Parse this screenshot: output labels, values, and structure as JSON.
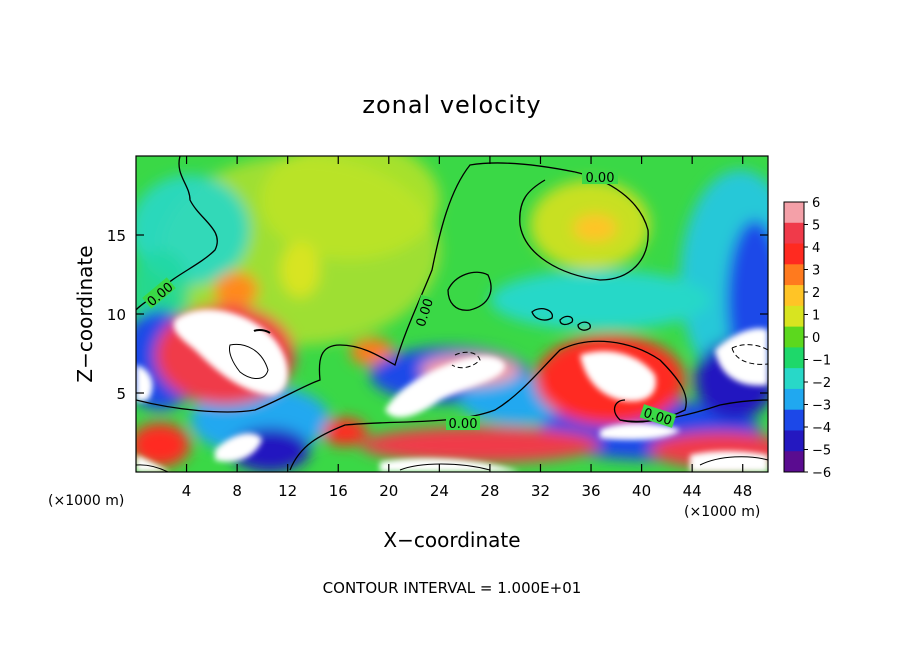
{
  "chart_data": {
    "type": "heatmap",
    "title": "zonal velocity",
    "xlabel": "X−coordinate",
    "ylabel": "Z−coordinate",
    "x_unit_left": "(×1000 m)",
    "x_unit_right": "(×1000 m)",
    "footer": "CONTOUR INTERVAL = 1.000E+01",
    "xlim": [
      0,
      50
    ],
    "ylim": [
      0,
      20
    ],
    "x_ticks": [
      4,
      8,
      12,
      16,
      20,
      24,
      28,
      32,
      36,
      40,
      44,
      48
    ],
    "y_ticks": [
      5,
      10,
      15
    ],
    "colorbar": {
      "ticks": [
        6,
        5,
        4,
        3,
        2,
        1,
        0,
        -1,
        -2,
        -3,
        -4,
        -5,
        -6
      ],
      "colors": [
        "#f4a0a8",
        "#f03a4a",
        "#ff2a20",
        "#ff7a1e",
        "#ffc426",
        "#d8e420",
        "#5cd81e",
        "#1ed86a",
        "#28d8c8",
        "#20a8f0",
        "#1c48e8",
        "#2418c0",
        "#5a0c90"
      ]
    },
    "contour_labels": [
      "0.00",
      "0.00",
      "0.00",
      "0.00",
      "0.00"
    ],
    "background": "#3ad846",
    "saturated_color": "#ffffff"
  }
}
